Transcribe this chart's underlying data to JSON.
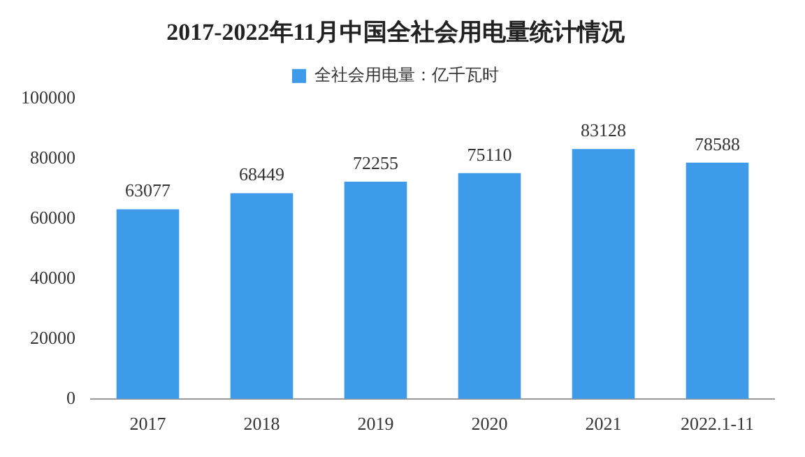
{
  "chart_data": {
    "type": "bar",
    "title": "2017-2022年11月中国全社会用电量统计情况",
    "categories": [
      "2017",
      "2018",
      "2019",
      "2020",
      "2021",
      "2022.1-11"
    ],
    "series": [
      {
        "name": "全社会用电量：亿千瓦时",
        "color": "#3d9be9",
        "values": [
          63077,
          68449,
          72255,
          75110,
          83128,
          78588
        ]
      }
    ],
    "ylim": [
      0,
      100000
    ],
    "yticks": [
      0,
      20000,
      40000,
      60000,
      80000,
      100000
    ],
    "grid": false,
    "legend": "top",
    "data_labels": true
  }
}
